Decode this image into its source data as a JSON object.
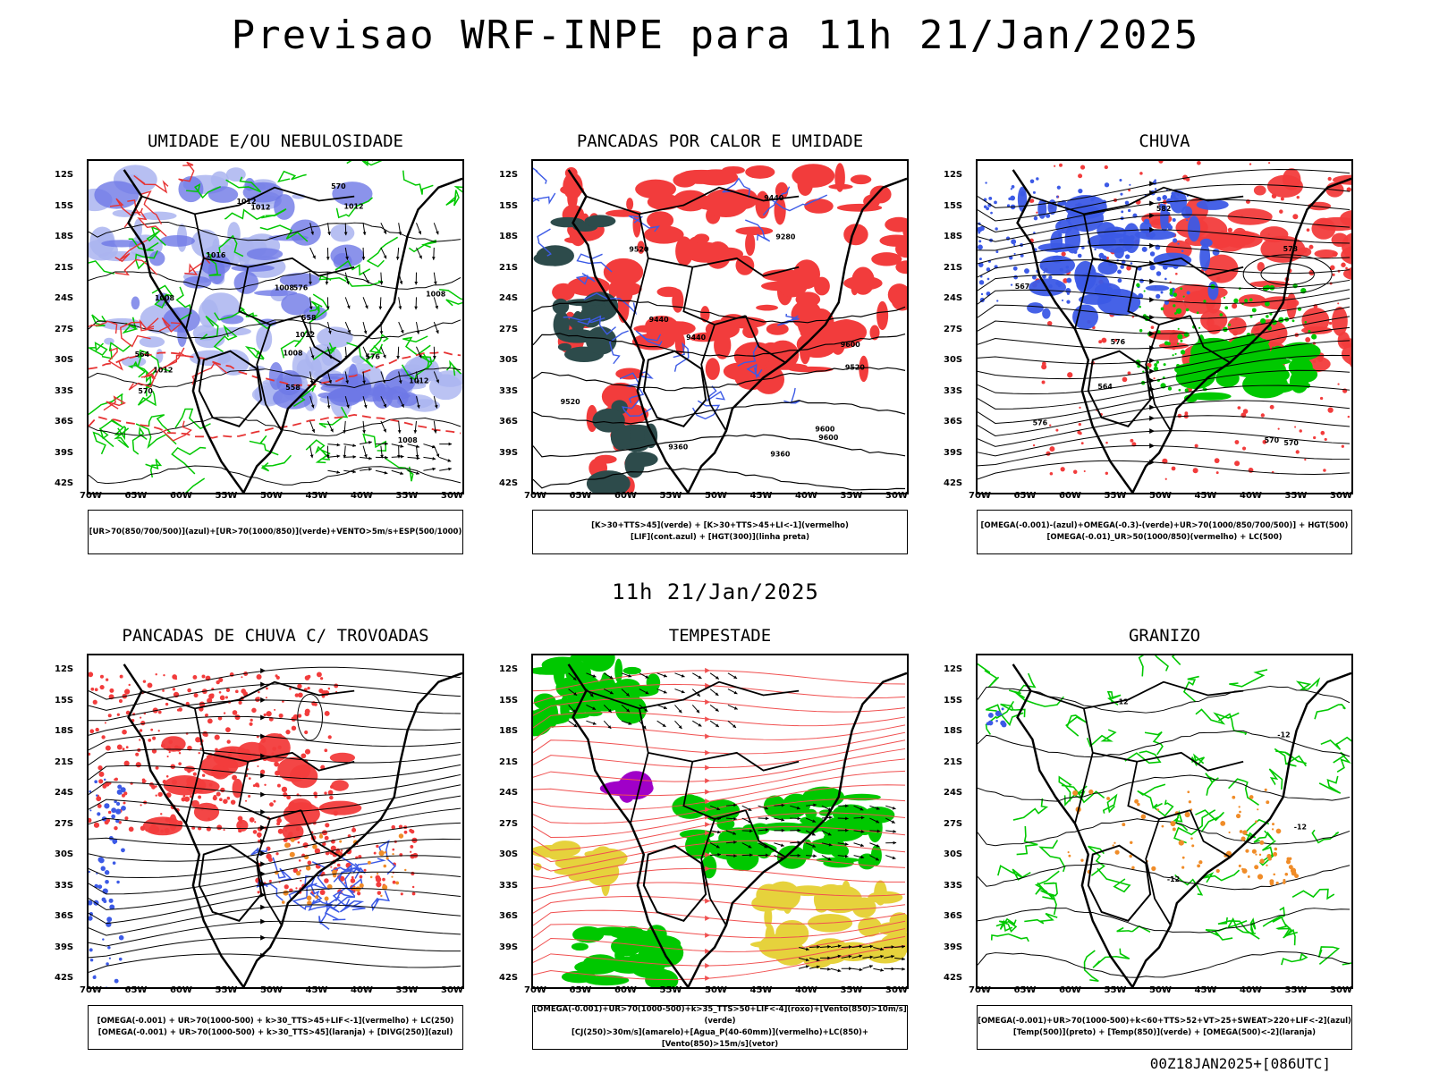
{
  "header": {
    "title": "Previsao WRF-INPE  para 11h 21/Jan/2025"
  },
  "middle_date": "11h 21/Jan/2025",
  "footer_run": "00Z18JAN2025+[086UTC]",
  "axes": {
    "lat_labels": [
      "12S",
      "15S",
      "18S",
      "21S",
      "24S",
      "27S",
      "30S",
      "33S",
      "36S",
      "39S",
      "42S"
    ],
    "lon_labels": [
      "70W",
      "65W",
      "60W",
      "55W",
      "50W",
      "45W",
      "40W",
      "35W",
      "30W"
    ]
  },
  "colors": {
    "red": "#f23c3c",
    "blue": "#3c5ae6",
    "green": "#00c800",
    "lightblue": "#aab4f0",
    "midblue": "#6e78e6",
    "yellow": "#e6d23c",
    "darkteal": "#2d4b4b",
    "orange": "#f08c28",
    "purple": "#a000c8",
    "black": "#000000"
  },
  "panels": [
    {
      "id": "umidade",
      "title": "UMIDADE E/OU NEBULOSIDADE",
      "legend": [
        "[UR>70(850/700/500)](azul)+[UR>70(1000/850)](verde)+VENTO>5m/s+ESP(500/1000)"
      ],
      "labels": [
        "1012",
        "1016",
        "1012",
        "1008",
        "1012",
        "1008",
        "1008",
        "1008",
        "1008",
        "1012",
        "1012",
        "1012",
        "576",
        "570",
        "570",
        "564",
        "558",
        "558",
        "576"
      ]
    },
    {
      "id": "pancadas-calor",
      "title": "PANCADAS POR CALOR E UMIDADE",
      "legend": [
        "[K>30+TTS>45](verde) + [K>30+TTS>45+LI<-1](vermelho)",
        "[LIF](cont.azul) + [HGT(300)](linha preta)"
      ],
      "labels": [
        "9600",
        "9600",
        "9520",
        "9600",
        "9520",
        "9520",
        "9440",
        "9440",
        "9360",
        "9360",
        "9280",
        "9440"
      ]
    },
    {
      "id": "chuva",
      "title": "CHUVA",
      "legend": [
        "[OMEGA(-0.001)-(azul)+OMEGA(-0.3)-(verde)+UR>70(1000/850/700/500)] + HGT(500)",
        "[OMEGA(-0.01)_UR>50(1000/850)(vermelho) + LC(500)"
      ],
      "labels": [
        "582",
        "576",
        "576",
        "573",
        "570",
        "570",
        "567",
        "564"
      ]
    },
    {
      "id": "pancadas-trovoadas",
      "title": "PANCADAS DE CHUVA C/ TROVOADAS",
      "legend": [
        "[OMEGA(-0.001) + UR>70(1000-500) + k>30_TTS>45+LIF<-1](vermelho) + LC(250)",
        "[OMEGA(-0.001) + UR>70(1000-500) + k>30_TTS>45](laranja) + [DIVG(250)](azul)"
      ],
      "labels": []
    },
    {
      "id": "tempestade",
      "title": "TEMPESTADE",
      "legend": [
        "[OMEGA(-0.001)+UR>70(1000-500)+k>35_TTS>50+LIF<-4](roxo)+[Vento(850)>10m/s](verde)",
        "[CJ(250)>30m/s](amarelo)+[Agua_P(40-60mm)](vermelho)+LC(850)+[Vento(850)>15m/s](vetor)"
      ],
      "labels": []
    },
    {
      "id": "granizo",
      "title": "GRANIZO",
      "legend": [
        "[OMEGA(-0.001)+UR>70(1000-500)+k<60+TTS>52+VT>25+SWEAT>220+LIF<-2](azul)",
        "[Temp(500)](preto) + [Temp(850)](verde) + [OMEGA(500)<-2](laranja)"
      ],
      "labels": [
        "-12",
        "-12",
        "-12",
        "-12"
      ]
    }
  ]
}
